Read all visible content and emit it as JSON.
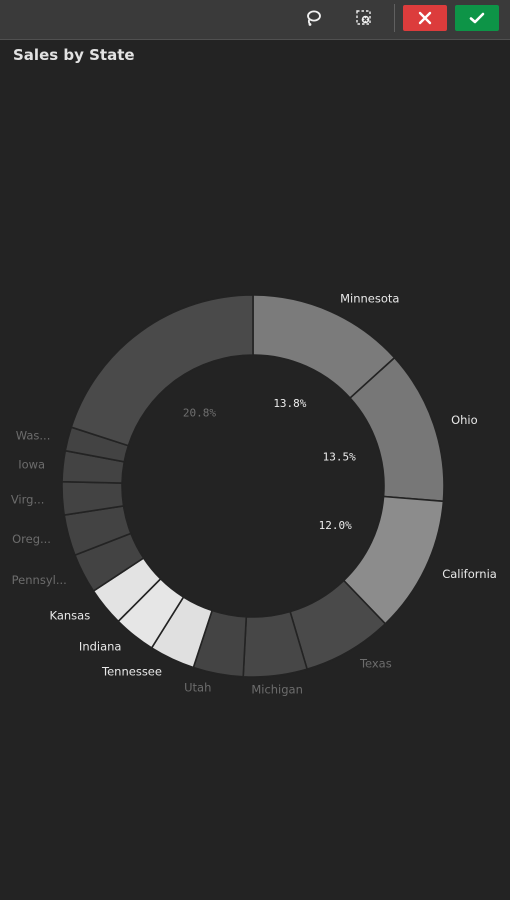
{
  "toolbar": {
    "buttons": [
      {
        "name": "lasso-icon"
      },
      {
        "name": "clear-selections-icon"
      },
      {
        "name": "close-icon",
        "color": "#dc3c3c"
      },
      {
        "name": "checkmark-icon",
        "color": "#0d9447"
      }
    ]
  },
  "chart_data": {
    "type": "pie",
    "title": "Sales by State",
    "donut": true,
    "categories": [
      "Minnesota",
      "Ohio",
      "California",
      "Texas",
      "Michigan",
      "Utah",
      "Tennessee",
      "Indiana",
      "Kansas",
      "Pennsyl...",
      "Oreg...",
      "Virg...",
      "Iowa",
      "Was...",
      ""
    ],
    "values": [
      13.8,
      13.5,
      12.0,
      7.9,
      5.6,
      4.4,
      4.0,
      3.7,
      3.4,
      3.5,
      3.6,
      2.9,
      2.7,
      2.1,
      20.8
    ],
    "value_labels": [
      "13.8%",
      "13.5%",
      "12.0%",
      "",
      "",
      "",
      "",
      "",
      "",
      "",
      "",
      "",
      "",
      "",
      "20.8%"
    ],
    "colors": [
      "#7b7b7b",
      "#777777",
      "#8c8c8c",
      "#4a4a4a",
      "#474747",
      "#444444",
      "#e0e0e0",
      "#e6e6e6",
      "#e3e3e3",
      "#434343",
      "#434343",
      "#434343",
      "#434343",
      "#434343",
      "#4a4a4a"
    ],
    "label_colors": [
      "#e8e8e8",
      "#e8e8e8",
      "#e8e8e8",
      "#6c6c6c",
      "#6c6c6c",
      "#6c6c6c",
      "#e8e8e8",
      "#e8e8e8",
      "#e8e8e8",
      "#6c6c6c",
      "#6c6c6c",
      "#6c6c6c",
      "#6c6c6c",
      "#6c6c6c",
      "#6c6c6c"
    ],
    "pct_label_colors": [
      "#ececec",
      "#ececec",
      "#ececec",
      "",
      "",
      "",
      "",
      "",
      "",
      "",
      "",
      "",
      "",
      "",
      "#6f6f6f"
    ]
  }
}
